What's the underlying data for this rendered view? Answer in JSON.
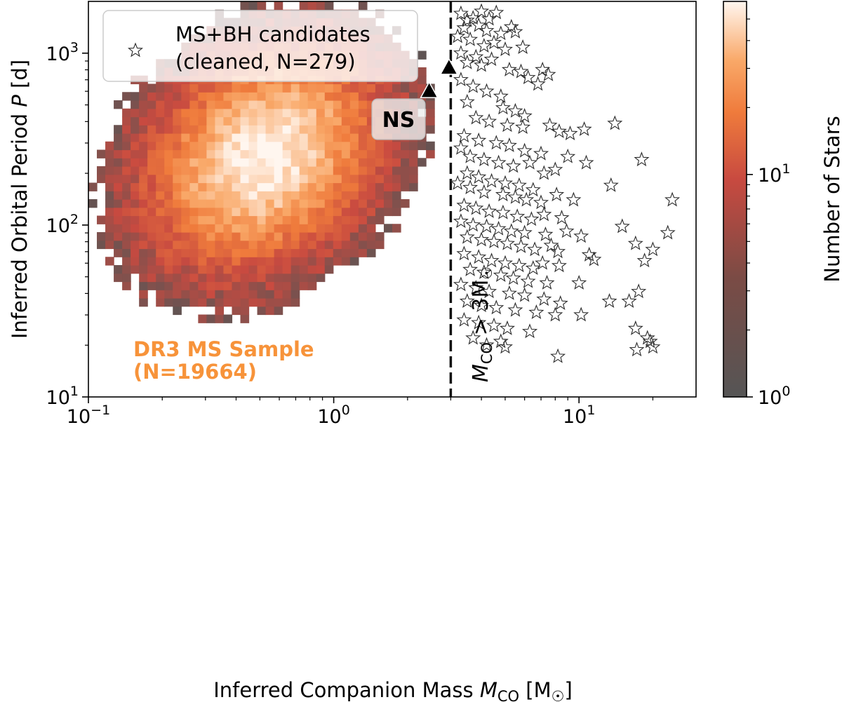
{
  "chart_data": {
    "type": "heatmap",
    "xlabel": "Inferred Companion Mass M_CO [M_☉]",
    "ylabel": "Inferred Orbital Period P [d]",
    "x_scale": "log",
    "y_scale": "log",
    "xlim": [
      0.1,
      30
    ],
    "ylim": [
      10,
      2000
    ],
    "x_ticks": [
      {
        "value": 0.1,
        "base": "10",
        "exp": "−1"
      },
      {
        "value": 1,
        "base": "10",
        "exp": "0"
      },
      {
        "value": 10,
        "base": "10",
        "exp": "1"
      }
    ],
    "y_ticks": [
      {
        "value": 10,
        "base": "10",
        "exp": "1"
      },
      {
        "value": 100,
        "base": "10",
        "exp": "2"
      },
      {
        "value": 1000,
        "base": "10",
        "exp": "3"
      }
    ],
    "colorbar": {
      "label": "Number of Stars",
      "scale": "log",
      "range": [
        1,
        60
      ],
      "ticks": [
        {
          "value": 1,
          "base": "10",
          "exp": "0"
        },
        {
          "value": 10,
          "base": "10",
          "exp": "1"
        }
      ],
      "colors": [
        "#555555",
        "#c84a40",
        "#ef7b3c",
        "#f9a868",
        "#fff6ef"
      ]
    },
    "histogram_peak": {
      "mass": 0.52,
      "period": 250,
      "max_count": 60
    },
    "cutoff_line": {
      "mass": 3,
      "style": "dashed",
      "label_main": "M",
      "label_sub": "CO",
      "label_rel": " > 3M",
      "label_sun": "☉"
    },
    "ns_label": "NS",
    "ns_markers": [
      {
        "mass": 2.45,
        "period": 600
      },
      {
        "mass": 2.95,
        "period": 820
      }
    ],
    "sample_label": {
      "line1": "DR3 MS Sample",
      "line2": "(N=19664)",
      "color": "#f7933a"
    },
    "legend": {
      "label_line1": "MS+BH candidates",
      "label_line2": "(cleaned, N=279)",
      "marker": "star-outline",
      "location": "upper-left"
    },
    "star_points": [
      [
        3.3,
        1700
      ],
      [
        3.5,
        1550
      ],
      [
        3.7,
        1600
      ],
      [
        4.0,
        1750
      ],
      [
        4.3,
        1580
      ],
      [
        4.6,
        1720
      ],
      [
        3.4,
        1400
      ],
      [
        3.9,
        1450
      ],
      [
        4.2,
        1350
      ],
      [
        4.8,
        1300
      ],
      [
        5.3,
        1420
      ],
      [
        5.5,
        1330
      ],
      [
        3.2,
        1250
      ],
      [
        3.6,
        1200
      ],
      [
        4.1,
        1100
      ],
      [
        4.5,
        1150
      ],
      [
        5.0,
        1050
      ],
      [
        5.9,
        1080
      ],
      [
        3.3,
        1000
      ],
      [
        3.8,
        950
      ],
      [
        4.4,
        920
      ],
      [
        3.5,
        880
      ],
      [
        4.0,
        850
      ],
      [
        5.2,
        800
      ],
      [
        5.8,
        780
      ],
      [
        6.2,
        720
      ],
      [
        7.1,
        800
      ],
      [
        7.5,
        750
      ],
      [
        6.8,
        660
      ],
      [
        3.3,
        700
      ],
      [
        3.7,
        640
      ],
      [
        4.2,
        600
      ],
      [
        4.8,
        560
      ],
      [
        3.5,
        520
      ],
      [
        4.9,
        480
      ],
      [
        5.5,
        460
      ],
      [
        6.0,
        430
      ],
      [
        3.8,
        420
      ],
      [
        4.3,
        400
      ],
      [
        5.1,
        380
      ],
      [
        5.9,
        370
      ],
      [
        7.6,
        380
      ],
      [
        8.3,
        350
      ],
      [
        9.2,
        340
      ],
      [
        10.5,
        360
      ],
      [
        14.0,
        390
      ],
      [
        3.4,
        330
      ],
      [
        3.9,
        310
      ],
      [
        4.6,
        300
      ],
      [
        5.2,
        290
      ],
      [
        6.0,
        270
      ],
      [
        7.0,
        260
      ],
      [
        3.3,
        280
      ],
      [
        3.6,
        250
      ],
      [
        4.1,
        240
      ],
      [
        4.7,
        230
      ],
      [
        5.4,
        220
      ],
      [
        6.3,
        230
      ],
      [
        7.2,
        200
      ],
      [
        8.0,
        210
      ],
      [
        9.0,
        250
      ],
      [
        10.7,
        230
      ],
      [
        18.0,
        240
      ],
      [
        3.5,
        200
      ],
      [
        3.9,
        190
      ],
      [
        4.4,
        180
      ],
      [
        5.0,
        175
      ],
      [
        5.7,
        170
      ],
      [
        6.5,
        160
      ],
      [
        3.2,
        175
      ],
      [
        3.6,
        165
      ],
      [
        4.1,
        155
      ],
      [
        4.9,
        150
      ],
      [
        5.5,
        145
      ],
      [
        6.1,
        140
      ],
      [
        7.0,
        135
      ],
      [
        8.1,
        150
      ],
      [
        9.5,
        140
      ],
      [
        13.5,
        170
      ],
      [
        24.0,
        140
      ],
      [
        3.4,
        130
      ],
      [
        3.8,
        125
      ],
      [
        4.3,
        120
      ],
      [
        4.9,
        118
      ],
      [
        5.6,
        112
      ],
      [
        6.4,
        108
      ],
      [
        7.2,
        115
      ],
      [
        8.5,
        110
      ],
      [
        3.3,
        105
      ],
      [
        3.7,
        100
      ],
      [
        4.2,
        98
      ],
      [
        4.7,
        95
      ],
      [
        5.3,
        92
      ],
      [
        6.0,
        90
      ],
      [
        7.3,
        88
      ],
      [
        8.9,
        92
      ],
      [
        10.2,
        86
      ],
      [
        15.0,
        98
      ],
      [
        23.0,
        90
      ],
      [
        3.5,
        85
      ],
      [
        4.0,
        82
      ],
      [
        4.5,
        80
      ],
      [
        5.1,
        78
      ],
      [
        5.8,
        75
      ],
      [
        6.6,
        72
      ],
      [
        7.7,
        76
      ],
      [
        8.2,
        70
      ],
      [
        11.0,
        67
      ],
      [
        17.0,
        78
      ],
      [
        20.0,
        72
      ],
      [
        3.4,
        68
      ],
      [
        3.9,
        65
      ],
      [
        4.4,
        62
      ],
      [
        5.0,
        60
      ],
      [
        5.7,
        58
      ],
      [
        6.5,
        56
      ],
      [
        7.1,
        60
      ],
      [
        8.3,
        58
      ],
      [
        11.5,
        63
      ],
      [
        18.5,
        62
      ],
      [
        3.6,
        55
      ],
      [
        4.1,
        53
      ],
      [
        4.8,
        51
      ],
      [
        5.4,
        49
      ],
      [
        6.2,
        47
      ],
      [
        7.4,
        46
      ],
      [
        10.0,
        46
      ],
      [
        3.3,
        45
      ],
      [
        3.8,
        43
      ],
      [
        4.3,
        41
      ],
      [
        5.2,
        40
      ],
      [
        6.0,
        39
      ],
      [
        7.2,
        37
      ],
      [
        8.4,
        35
      ],
      [
        13.3,
        36
      ],
      [
        16.0,
        36
      ],
      [
        3.5,
        36
      ],
      [
        4.0,
        34
      ],
      [
        4.6,
        33
      ],
      [
        5.5,
        32
      ],
      [
        6.7,
        31
      ],
      [
        8.0,
        30
      ],
      [
        10.2,
        30
      ],
      [
        17.5,
        41
      ],
      [
        3.4,
        28
      ],
      [
        3.9,
        27
      ],
      [
        4.5,
        26
      ],
      [
        5.1,
        25
      ],
      [
        6.3,
        24
      ],
      [
        17.0,
        25
      ],
      [
        19.0,
        22
      ],
      [
        19.5,
        21
      ],
      [
        3.7,
        22
      ],
      [
        4.2,
        20
      ],
      [
        5.0,
        19.5
      ],
      [
        4.8,
        21
      ],
      [
        20.0,
        19.5
      ],
      [
        17.2,
        18.8
      ],
      [
        8.2,
        17.2
      ]
    ]
  }
}
